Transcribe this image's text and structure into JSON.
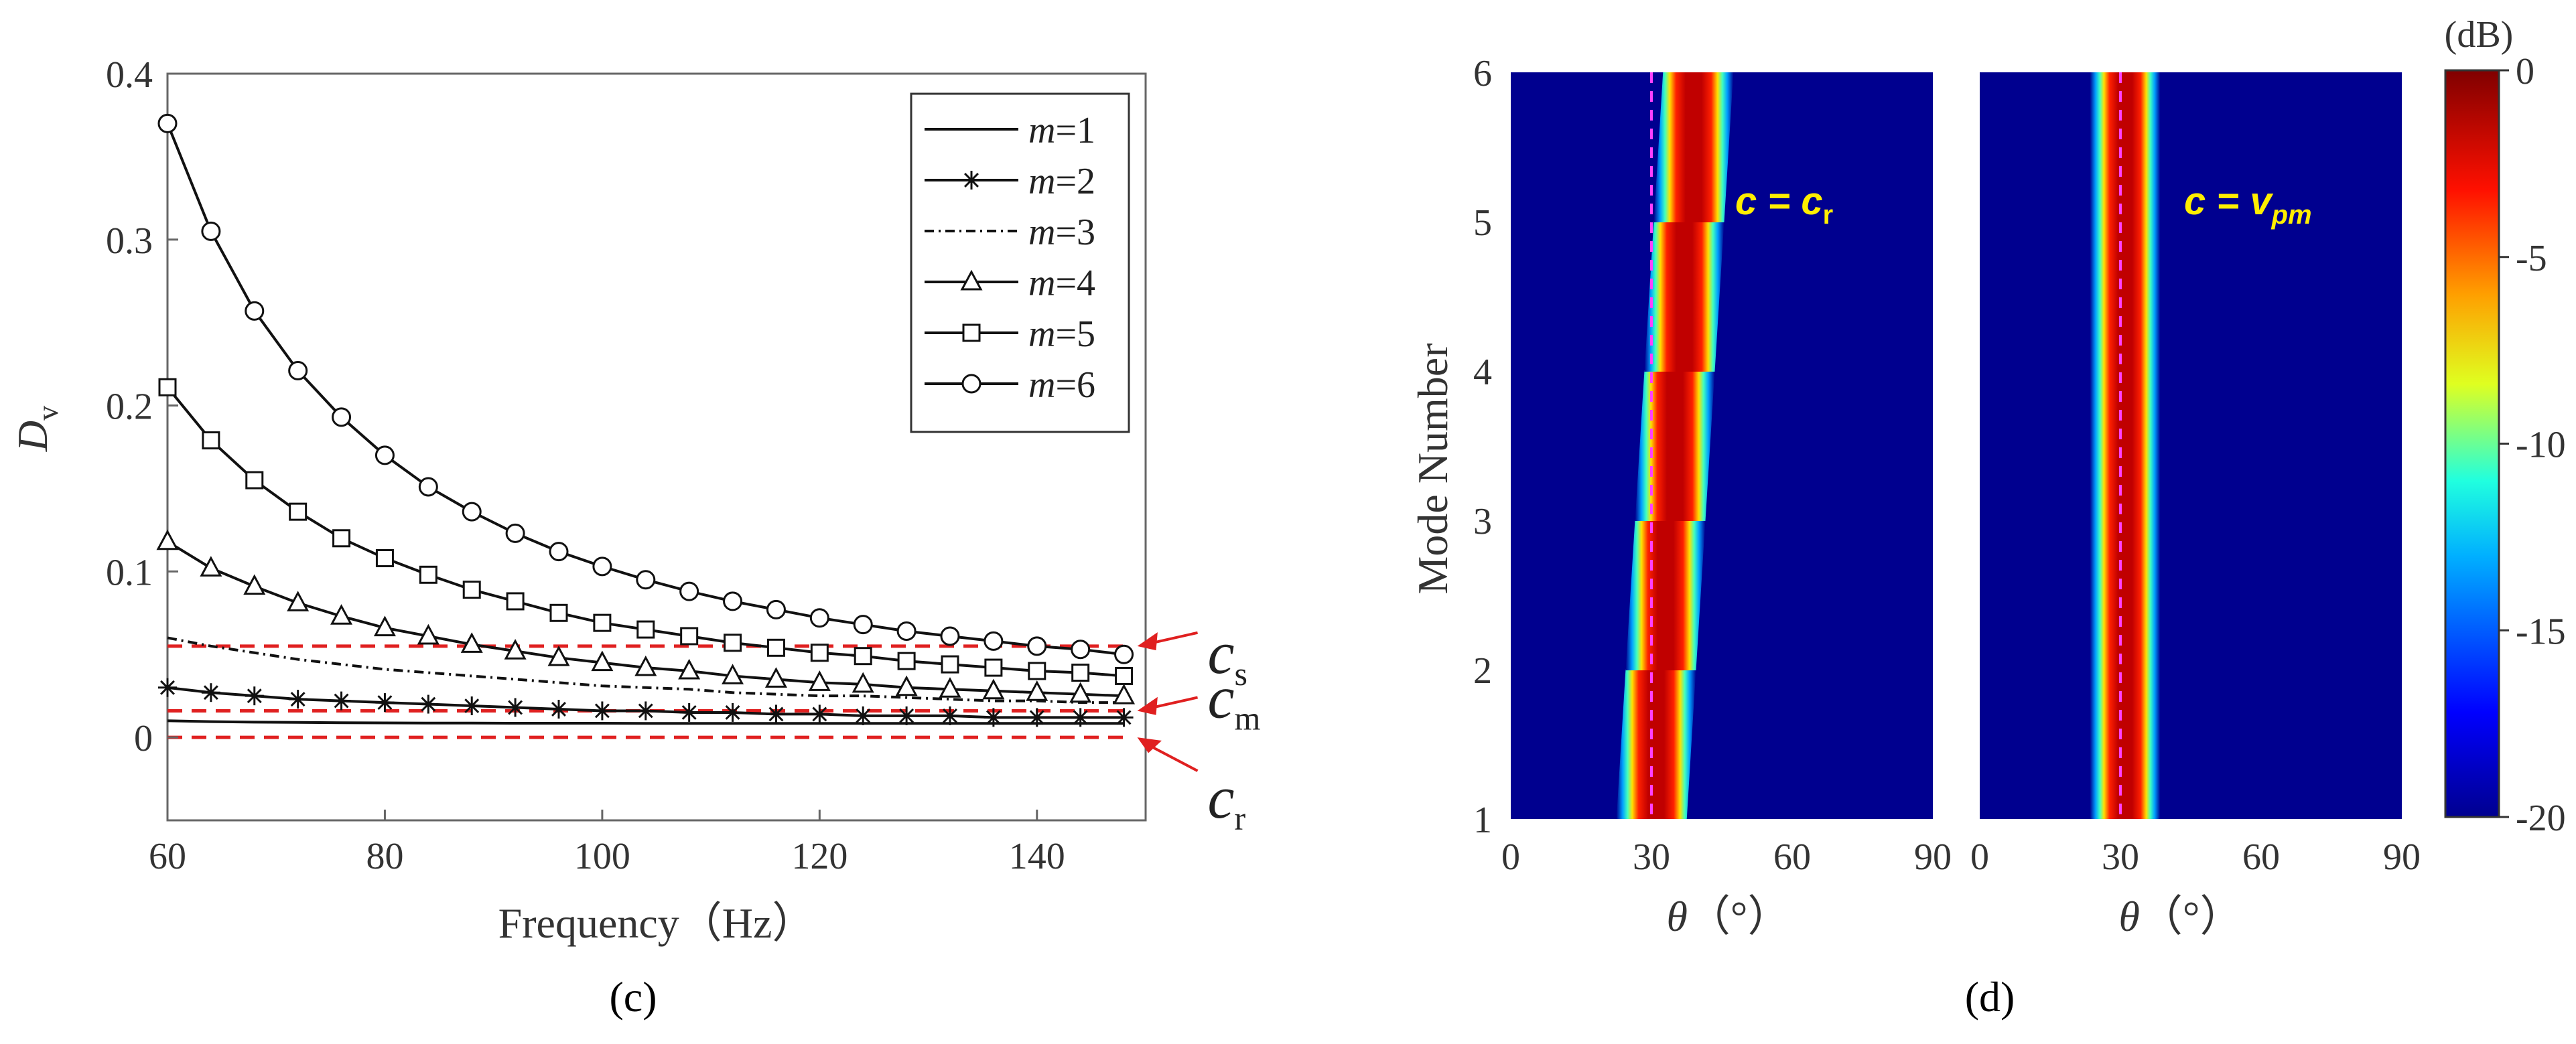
{
  "chart_data": [
    {
      "panel": "(c)",
      "type": "line",
      "xlabel": "Frequency（Hz）",
      "ylabel": "D",
      "ylabel_sub": "v",
      "xlim": [
        60,
        150
      ],
      "ylim": [
        -0.05,
        0.4
      ],
      "xticks": [
        "60",
        "80",
        "100",
        "120",
        "140"
      ],
      "yticks": [
        "0",
        "0.1",
        "0.2",
        "0.3",
        "0.4"
      ],
      "x": [
        60,
        64,
        68,
        72,
        76,
        80,
        84,
        88,
        92,
        96,
        100,
        104,
        108,
        112,
        116,
        120,
        124,
        128,
        132,
        136,
        140,
        144,
        148
      ],
      "series": [
        {
          "name": "m=1",
          "m_label": "m",
          "num_label": "=1",
          "marker": "none",
          "style": "solid",
          "values": [
            0.01,
            0.0095,
            0.0092,
            0.009,
            0.0088,
            0.0087,
            0.0086,
            0.0086,
            0.0085,
            0.0085,
            0.0085,
            0.0084,
            0.0084,
            0.0084,
            0.0084,
            0.0084,
            0.0084,
            0.0084,
            0.0084,
            0.0084,
            0.0084,
            0.0084,
            0.0084
          ]
        },
        {
          "name": "m=2",
          "m_label": "m",
          "num_label": "=2",
          "marker": "star",
          "style": "solid",
          "values": [
            0.03,
            0.027,
            0.025,
            0.023,
            0.022,
            0.021,
            0.02,
            0.019,
            0.018,
            0.017,
            0.016,
            0.016,
            0.015,
            0.015,
            0.014,
            0.014,
            0.013,
            0.013,
            0.013,
            0.012,
            0.012,
            0.012,
            0.012
          ]
        },
        {
          "name": "m=3",
          "m_label": "m",
          "num_label": "=3",
          "marker": "none",
          "style": "dashdot",
          "values": [
            0.06,
            0.055,
            0.051,
            0.047,
            0.044,
            0.041,
            0.039,
            0.037,
            0.035,
            0.033,
            0.031,
            0.03,
            0.029,
            0.027,
            0.026,
            0.025,
            0.025,
            0.024,
            0.023,
            0.022,
            0.022,
            0.021,
            0.021
          ]
        },
        {
          "name": "m=4",
          "m_label": "m",
          "num_label": "=4",
          "marker": "triangle",
          "style": "solid",
          "values": [
            0.118,
            0.102,
            0.091,
            0.081,
            0.073,
            0.066,
            0.061,
            0.056,
            0.052,
            0.048,
            0.045,
            0.042,
            0.04,
            0.037,
            0.035,
            0.033,
            0.032,
            0.03,
            0.029,
            0.028,
            0.027,
            0.026,
            0.025
          ]
        },
        {
          "name": "m=5",
          "m_label": "m",
          "num_label": "=5",
          "marker": "square",
          "style": "solid",
          "values": [
            0.211,
            0.179,
            0.155,
            0.136,
            0.12,
            0.108,
            0.098,
            0.089,
            0.082,
            0.075,
            0.069,
            0.065,
            0.061,
            0.057,
            0.054,
            0.051,
            0.049,
            0.046,
            0.044,
            0.042,
            0.04,
            0.039,
            0.037
          ]
        },
        {
          "name": "m=6",
          "m_label": "m",
          "num_label": "=6",
          "marker": "circle",
          "style": "solid",
          "values": [
            0.37,
            0.305,
            0.257,
            0.221,
            0.193,
            0.17,
            0.151,
            0.136,
            0.123,
            0.112,
            0.103,
            0.095,
            0.088,
            0.082,
            0.077,
            0.072,
            0.068,
            0.064,
            0.061,
            0.058,
            0.055,
            0.053,
            0.05
          ]
        }
      ],
      "reference_lines": [
        {
          "label": "c",
          "sub": "s",
          "y": 0.055,
          "color": "#e02020"
        },
        {
          "label": "c",
          "sub": "m",
          "y": 0.016,
          "color": "#e02020"
        },
        {
          "label": "c",
          "sub": "r",
          "y": 0.0,
          "color": "#e02020"
        }
      ],
      "legend_position": "top-right"
    },
    {
      "panel": "(d)",
      "type": "heatmap",
      "ylabel": "Mode Number",
      "xlabel_symbol": "θ",
      "xlabel_unit": "（°）",
      "xlim": [
        0,
        90
      ],
      "ylim": [
        1,
        6
      ],
      "xticks": [
        "0",
        "30",
        "60",
        "90"
      ],
      "yticks": [
        "1",
        "2",
        "3",
        "4",
        "5",
        "6"
      ],
      "colorbar": {
        "unit": "(dB)",
        "ticks": [
          "0",
          "-5",
          "-10",
          "-15",
          "-20"
        ],
        "range": [
          -20,
          0
        ]
      },
      "subplots": [
        {
          "annotation": "c = c",
          "annotation_sub": "r",
          "ridge_theta_by_mode": [
            30,
            32,
            34,
            36,
            38,
            40
          ],
          "reference_theta": 30
        },
        {
          "annotation": "c = v",
          "annotation_sub": "pm",
          "ridge_theta_by_mode": [
            31,
            31,
            31,
            31,
            31,
            31
          ],
          "reference_theta": 30
        }
      ]
    }
  ],
  "panel_labels": {
    "c": "(c)",
    "d": "(d)"
  }
}
